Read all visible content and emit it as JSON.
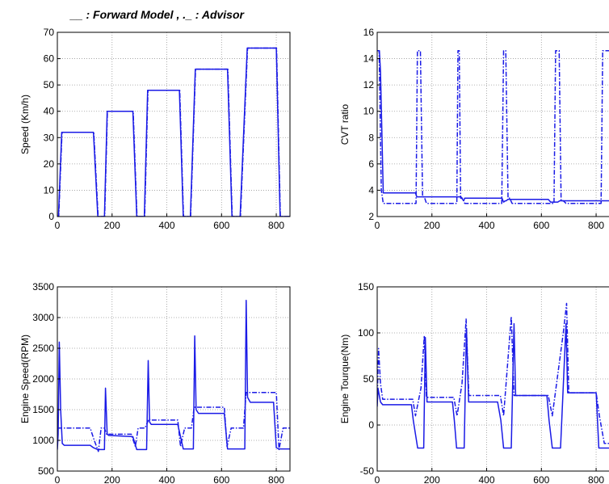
{
  "legend_text": "__  : Forward Model   ,  ._  : Advisor",
  "colors": {
    "series": "#1a1ae6",
    "grid": "#999999",
    "axis": "#000000"
  },
  "chart_data": [
    {
      "type": "line",
      "ylabel": "Speed (Km/h)",
      "xlim": [
        0,
        850
      ],
      "ylim": [
        0,
        70
      ],
      "xticks": [
        0,
        200,
        400,
        600,
        800
      ],
      "yticks": [
        0,
        10,
        20,
        30,
        40,
        50,
        60,
        70
      ],
      "grid": true,
      "series": [
        {
          "name": "Forward Model",
          "style": "solid",
          "x": [
            0,
            4,
            16,
            132,
            148,
            155,
            172,
            182,
            276,
            290,
            300,
            318,
            330,
            446,
            460,
            468,
            486,
            504,
            622,
            638,
            648,
            668,
            694,
            800,
            814,
            850
          ],
          "y": [
            0,
            0,
            32,
            32,
            0,
            0,
            0,
            40,
            40,
            0,
            0,
            0,
            48,
            48,
            0,
            0,
            0,
            56,
            56,
            0,
            0,
            0,
            64,
            64,
            0,
            0
          ]
        },
        {
          "name": "Advisor",
          "style": "dashdot",
          "x": [
            0,
            5,
            17,
            133,
            149,
            156,
            173,
            183,
            277,
            291,
            301,
            319,
            331,
            447,
            461,
            469,
            487,
            505,
            623,
            639,
            649,
            669,
            695,
            801,
            815,
            850
          ],
          "y": [
            0,
            0,
            32,
            32,
            0,
            0,
            0,
            40,
            40,
            0,
            0,
            0,
            48,
            48,
            0,
            0,
            0,
            56,
            56,
            0,
            0,
            0,
            64,
            64,
            0,
            0
          ]
        }
      ]
    },
    {
      "type": "line",
      "ylabel": "CVT ratio",
      "xlim": [
        0,
        850
      ],
      "ylim": [
        2,
        16
      ],
      "xticks": [
        0,
        200,
        400,
        600,
        800
      ],
      "yticks": [
        2,
        4,
        6,
        8,
        10,
        12,
        14,
        16
      ],
      "grid": true,
      "series": [
        {
          "name": "Forward Model",
          "style": "solid",
          "x": [
            0,
            4,
            8,
            12,
            22,
            132,
            140,
            145,
            150,
            154,
            160,
            165,
            172,
            176,
            180,
            185,
            290,
            298,
            306,
            312,
            316,
            320,
            325,
            333,
            338,
            343,
            447,
            456,
            462,
            468,
            472,
            477,
            485,
            489,
            494,
            499,
            502,
            506,
            511,
            625,
            634,
            641,
            645,
            650,
            660,
            667,
            677,
            681,
            686,
            691,
            695,
            699,
            704,
            800,
            810,
            850
          ],
          "y": [
            14.6,
            14.6,
            14.6,
            13,
            3.8,
            3.8,
            3.8,
            3.5,
            3.5,
            3.5,
            3.5,
            3.5,
            3.5,
            3.5,
            3.5,
            3.5,
            3.5,
            3.5,
            3.5,
            3.3,
            3.2,
            3.4,
            3.4,
            3.4,
            3.4,
            3.4,
            3.4,
            3.4,
            3.1,
            3.2,
            3.2,
            3.3,
            3.3,
            3.3,
            3.3,
            3.3,
            3.3,
            3.3,
            3.3,
            3.3,
            3.1,
            3.1,
            3.1,
            3.1,
            3.1,
            3.2,
            3.2,
            3.2,
            3.2,
            3.2,
            3.2,
            3.2,
            3.2,
            3.2,
            3.2,
            3.2
          ]
        },
        {
          "name": "Advisor",
          "style": "dashdot",
          "x": [
            0,
            3,
            7,
            15,
            22,
            135,
            142,
            147,
            158,
            166,
            172,
            180,
            188,
            285,
            291,
            295,
            300,
            305,
            312,
            320,
            330,
            450,
            455,
            462,
            470,
            478,
            484,
            493,
            500,
            640,
            646,
            652,
            665,
            672,
            680,
            690,
            700,
            810,
            818,
            824,
            850
          ],
          "y": [
            14.6,
            14.6,
            14.6,
            4,
            3,
            3,
            3,
            14.6,
            14.6,
            3.5,
            3.5,
            3,
            3,
            3,
            3,
            14.6,
            14.6,
            3.4,
            3.4,
            3,
            3,
            3,
            3,
            14.6,
            14.6,
            3.4,
            3.4,
            3,
            3,
            3,
            3,
            14.6,
            14.6,
            3.2,
            3.2,
            3,
            3,
            3,
            3,
            14.6,
            14.6
          ]
        }
      ]
    },
    {
      "type": "line",
      "ylabel": "Engine Speed(RPM)",
      "xlim": [
        0,
        850
      ],
      "ylim": [
        500,
        3500
      ],
      "xticks": [
        0,
        200,
        400,
        600,
        800
      ],
      "yticks": [
        500,
        1000,
        1500,
        2000,
        2500,
        3000,
        3500
      ],
      "grid": true,
      "series": [
        {
          "name": "Forward Model",
          "style": "solid",
          "x": [
            0,
            3,
            7,
            12,
            18,
            25,
            120,
            132,
            148,
            165,
            172,
            176,
            182,
            188,
            276,
            290,
            300,
            318,
            326,
            332,
            337,
            343,
            440,
            460,
            470,
            490,
            497,
            502,
            507,
            516,
            610,
            622,
            630,
            640,
            650,
            676,
            685,
            690,
            695,
            705,
            790,
            800,
            810,
            850
          ],
          "y": [
            850,
            1100,
            2600,
            1500,
            950,
            920,
            920,
            880,
            850,
            850,
            850,
            1850,
            1100,
            1080,
            1060,
            850,
            850,
            850,
            850,
            2300,
            1300,
            1260,
            1260,
            860,
            860,
            860,
            860,
            2700,
            1500,
            1440,
            1440,
            860,
            860,
            860,
            860,
            860,
            860,
            3280,
            1700,
            1620,
            1620,
            880,
            860,
            860
          ]
        },
        {
          "name": "Advisor",
          "style": "dashdot",
          "x": [
            0,
            5,
            12,
            20,
            30,
            120,
            135,
            150,
            160,
            172,
            180,
            190,
            270,
            285,
            295,
            310,
            320,
            335,
            340,
            440,
            450,
            465,
            475,
            490,
            500,
            510,
            610,
            620,
            635,
            655,
            670,
            680,
            690,
            695,
            800,
            810,
            825,
            850
          ],
          "y": [
            1200,
            1200,
            1200,
            1200,
            1200,
            1200,
            1000,
            820,
            1200,
            1200,
            1100,
            1100,
            1100,
            900,
            1200,
            1200,
            1200,
            1350,
            1330,
            1330,
            900,
            1200,
            1200,
            1200,
            1540,
            1540,
            1540,
            900,
            1200,
            1200,
            1200,
            1200,
            1780,
            1780,
            1780,
            850,
            1200,
            1200
          ]
        }
      ]
    },
    {
      "type": "line",
      "ylabel": "Engine Tourque(Nm)",
      "xlim": [
        0,
        850
      ],
      "ylim": [
        -50,
        150
      ],
      "xticks": [
        0,
        200,
        400,
        600,
        800
      ],
      "yticks": [
        -50,
        0,
        50,
        100,
        150
      ],
      "grid": true,
      "series": [
        {
          "name": "Forward Model",
          "style": "solid",
          "x": [
            0,
            3,
            6,
            12,
            20,
            30,
            125,
            132,
            148,
            155,
            170,
            176,
            182,
            190,
            275,
            282,
            290,
            300,
            318,
            326,
            334,
            340,
            440,
            452,
            462,
            470,
            490,
            500,
            506,
            512,
            620,
            628,
            640,
            648,
            670,
            690,
            696,
            702,
            800,
            810,
            850
          ],
          "y": [
            20,
            40,
            35,
            25,
            22,
            22,
            22,
            5,
            -25,
            -25,
            -25,
            95,
            25,
            25,
            25,
            5,
            -25,
            -25,
            -25,
            105,
            25,
            25,
            25,
            5,
            -25,
            -25,
            -25,
            110,
            32,
            32,
            32,
            5,
            -25,
            -25,
            -25,
            110,
            35,
            35,
            35,
            -25,
            -25
          ]
        },
        {
          "name": "Advisor",
          "style": "dashdot",
          "x": [
            0,
            5,
            12,
            20,
            40,
            130,
            140,
            160,
            172,
            180,
            190,
            280,
            292,
            310,
            325,
            335,
            345,
            450,
            462,
            475,
            490,
            500,
            510,
            625,
            640,
            660,
            680,
            692,
            700,
            800,
            812,
            830,
            850
          ],
          "y": [
            25,
            83,
            45,
            28,
            28,
            28,
            10,
            40,
            97,
            30,
            30,
            30,
            10,
            45,
            115,
            32,
            32,
            32,
            10,
            60,
            118,
            32,
            32,
            32,
            10,
            55,
            100,
            132,
            35,
            35,
            10,
            -20,
            -20
          ]
        }
      ]
    }
  ]
}
